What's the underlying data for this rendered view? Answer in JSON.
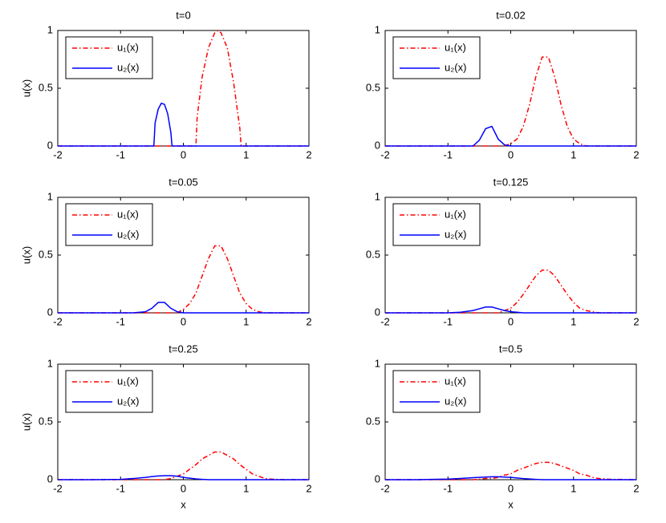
{
  "chart_data": [
    {
      "type": "line",
      "title": "t=0",
      "ylabel": "u(x)",
      "x": [
        -2,
        -1,
        -0.5,
        -0.47,
        -0.45,
        -0.4,
        -0.35,
        -0.3,
        -0.25,
        -0.2,
        -0.18,
        0,
        0.2,
        0.22,
        0.3,
        0.4,
        0.5,
        0.55,
        0.6,
        0.7,
        0.8,
        0.9,
        0.92,
        1,
        2
      ],
      "series": [
        {
          "name": "u₁(x)",
          "color": "#ff0000",
          "dash": "dashdot",
          "values": [
            0,
            0,
            0,
            0,
            0,
            0,
            0,
            0,
            0,
            0,
            0,
            0,
            0,
            0.25,
            0.6,
            0.85,
            0.98,
            1,
            0.98,
            0.85,
            0.55,
            0.15,
            0,
            0,
            0
          ]
        },
        {
          "name": "u₂(x)",
          "color": "#0000ff",
          "dash": "solid",
          "values": [
            0,
            0,
            0,
            0,
            0.2,
            0.32,
            0.37,
            0.36,
            0.28,
            0.12,
            0,
            0,
            0,
            0,
            0,
            0,
            0,
            0,
            0,
            0,
            0,
            0,
            0,
            0,
            0
          ]
        }
      ],
      "xlim": [
        -2,
        2
      ],
      "ylim": [
        0,
        1
      ],
      "xticks": [
        -2,
        -1,
        0,
        1,
        2
      ],
      "yticks": [
        0,
        0.5,
        1
      ],
      "legend": "upper-left"
    },
    {
      "type": "line",
      "title": "t=0.02",
      "x": [
        -2,
        -1.5,
        -1,
        -0.8,
        -0.6,
        -0.5,
        -0.4,
        -0.3,
        -0.2,
        -0.1,
        0,
        0.1,
        0.2,
        0.3,
        0.4,
        0.5,
        0.6,
        0.7,
        0.8,
        0.9,
        1,
        1.1,
        1.2,
        1.3,
        1.4,
        1.6,
        2
      ],
      "series": [
        {
          "name": "u₁(x)",
          "color": "#ff0000",
          "dash": "dashdot",
          "values": [
            0,
            0,
            0,
            0,
            0,
            0,
            0,
            0,
            0,
            0,
            0.02,
            0.06,
            0.17,
            0.36,
            0.6,
            0.77,
            0.77,
            0.6,
            0.36,
            0.17,
            0.06,
            0.02,
            0,
            0,
            0,
            0,
            0
          ]
        },
        {
          "name": "u₂(x)",
          "color": "#0000ff",
          "dash": "solid",
          "values": [
            0,
            0,
            0,
            0,
            0,
            0.05,
            0.15,
            0.17,
            0.06,
            0.01,
            0,
            0,
            0,
            0,
            0,
            0,
            0,
            0,
            0,
            0,
            0,
            0,
            0,
            0,
            0,
            0,
            0
          ]
        }
      ],
      "xlim": [
        -2,
        2
      ],
      "ylim": [
        0,
        1
      ],
      "xticks": [
        -2,
        -1,
        0,
        1,
        2
      ],
      "yticks": [
        0,
        0.5,
        1
      ],
      "legend": "upper-left"
    },
    {
      "type": "line",
      "title": "t=0.05",
      "ylabel": "u(x)",
      "x": [
        -2,
        -1.5,
        -1,
        -0.8,
        -0.6,
        -0.5,
        -0.4,
        -0.3,
        -0.2,
        -0.1,
        0,
        0.1,
        0.2,
        0.3,
        0.4,
        0.5,
        0.6,
        0.7,
        0.8,
        0.9,
        1,
        1.1,
        1.2,
        1.3,
        1.4,
        1.6,
        2
      ],
      "series": [
        {
          "name": "u₁(x)",
          "color": "#ff0000",
          "dash": "dashdot",
          "values": [
            0,
            0,
            0,
            0,
            0,
            0,
            0,
            0,
            0,
            0,
            0.03,
            0.08,
            0.17,
            0.32,
            0.47,
            0.58,
            0.58,
            0.47,
            0.32,
            0.17,
            0.08,
            0.03,
            0.01,
            0,
            0,
            0,
            0
          ]
        },
        {
          "name": "u₂(x)",
          "color": "#0000ff",
          "dash": "solid",
          "values": [
            0,
            0,
            0,
            0,
            0.01,
            0.04,
            0.09,
            0.09,
            0.04,
            0.01,
            0,
            0,
            0,
            0,
            0,
            0,
            0,
            0,
            0,
            0,
            0,
            0,
            0,
            0,
            0,
            0,
            0
          ]
        }
      ],
      "xlim": [
        -2,
        2
      ],
      "ylim": [
        0,
        1
      ],
      "xticks": [
        -2,
        -1,
        0,
        1,
        2
      ],
      "yticks": [
        0,
        0.5,
        1
      ],
      "legend": "upper-left"
    },
    {
      "type": "line",
      "title": "t=0.125",
      "x": [
        -2,
        -1.5,
        -1,
        -0.8,
        -0.6,
        -0.5,
        -0.4,
        -0.3,
        -0.2,
        -0.1,
        0,
        0.1,
        0.2,
        0.3,
        0.4,
        0.5,
        0.6,
        0.7,
        0.8,
        0.9,
        1,
        1.1,
        1.2,
        1.3,
        1.4,
        1.6,
        2
      ],
      "series": [
        {
          "name": "u₁(x)",
          "color": "#ff0000",
          "dash": "dashdot",
          "values": [
            0,
            0,
            0,
            0,
            0,
            0,
            0,
            0,
            0,
            0.02,
            0.04,
            0.09,
            0.16,
            0.24,
            0.32,
            0.37,
            0.37,
            0.32,
            0.24,
            0.16,
            0.09,
            0.04,
            0.02,
            0.01,
            0,
            0,
            0
          ]
        },
        {
          "name": "u₂(x)",
          "color": "#0000ff",
          "dash": "solid",
          "values": [
            0,
            0,
            0,
            0.005,
            0.02,
            0.035,
            0.05,
            0.05,
            0.035,
            0.02,
            0.01,
            0.005,
            0,
            0,
            0,
            0,
            0,
            0,
            0,
            0,
            0,
            0,
            0,
            0,
            0,
            0,
            0
          ]
        }
      ],
      "xlim": [
        -2,
        2
      ],
      "ylim": [
        0,
        1
      ],
      "xticks": [
        -2,
        -1,
        0,
        1,
        2
      ],
      "yticks": [
        0,
        0.5,
        1
      ],
      "legend": "upper-left"
    },
    {
      "type": "line",
      "title": "t=0.25",
      "ylabel": "u(x)",
      "xlabel": "x",
      "x": [
        -2,
        -1.5,
        -1,
        -0.8,
        -0.6,
        -0.5,
        -0.4,
        -0.3,
        -0.2,
        -0.1,
        0,
        0.1,
        0.2,
        0.3,
        0.4,
        0.5,
        0.6,
        0.7,
        0.8,
        0.9,
        1,
        1.1,
        1.2,
        1.3,
        1.4,
        1.6,
        2
      ],
      "series": [
        {
          "name": "u₁(x)",
          "color": "#ff0000",
          "dash": "dashdot",
          "values": [
            0,
            0,
            0,
            0,
            0,
            0,
            0,
            0,
            0.01,
            0.03,
            0.05,
            0.09,
            0.13,
            0.18,
            0.21,
            0.24,
            0.24,
            0.21,
            0.18,
            0.13,
            0.09,
            0.05,
            0.03,
            0.01,
            0.005,
            0,
            0
          ]
        },
        {
          "name": "u₂(x)",
          "color": "#0000ff",
          "dash": "solid",
          "values": [
            0,
            0,
            0.003,
            0.01,
            0.02,
            0.027,
            0.032,
            0.035,
            0.035,
            0.03,
            0.02,
            0.013,
            0.007,
            0.003,
            0,
            0,
            0,
            0,
            0,
            0,
            0,
            0,
            0,
            0,
            0,
            0,
            0
          ]
        }
      ],
      "xlim": [
        -2,
        2
      ],
      "ylim": [
        0,
        1
      ],
      "xticks": [
        -2,
        -1,
        0,
        1,
        2
      ],
      "yticks": [
        0,
        0.5,
        1
      ],
      "legend": "upper-left"
    },
    {
      "type": "line",
      "title": "t=0.5",
      "xlabel": "x",
      "x": [
        -2,
        -1.5,
        -1,
        -0.8,
        -0.6,
        -0.5,
        -0.4,
        -0.3,
        -0.2,
        -0.1,
        0,
        0.1,
        0.2,
        0.3,
        0.4,
        0.5,
        0.6,
        0.7,
        0.8,
        0.9,
        1,
        1.1,
        1.2,
        1.3,
        1.4,
        1.6,
        2
      ],
      "series": [
        {
          "name": "u₁(x)",
          "color": "#ff0000",
          "dash": "dashdot",
          "values": [
            0,
            0,
            0,
            0,
            0,
            0.004,
            0.01,
            0.01,
            0.02,
            0.04,
            0.05,
            0.08,
            0.1,
            0.12,
            0.14,
            0.15,
            0.15,
            0.14,
            0.12,
            0.1,
            0.08,
            0.05,
            0.04,
            0.02,
            0.01,
            0.003,
            0
          ]
        },
        {
          "name": "u₂(x)",
          "color": "#0000ff",
          "dash": "solid",
          "values": [
            0,
            0,
            0.005,
            0.01,
            0.017,
            0.02,
            0.023,
            0.025,
            0.025,
            0.023,
            0.02,
            0.015,
            0.01,
            0.006,
            0.003,
            0,
            0,
            0,
            0,
            0,
            0,
            0,
            0,
            0,
            0,
            0,
            0
          ]
        }
      ],
      "xlim": [
        -2,
        2
      ],
      "ylim": [
        0,
        1
      ],
      "xticks": [
        -2,
        -1,
        0,
        1,
        2
      ],
      "yticks": [
        0,
        0.5,
        1
      ],
      "legend": "upper-left"
    }
  ]
}
